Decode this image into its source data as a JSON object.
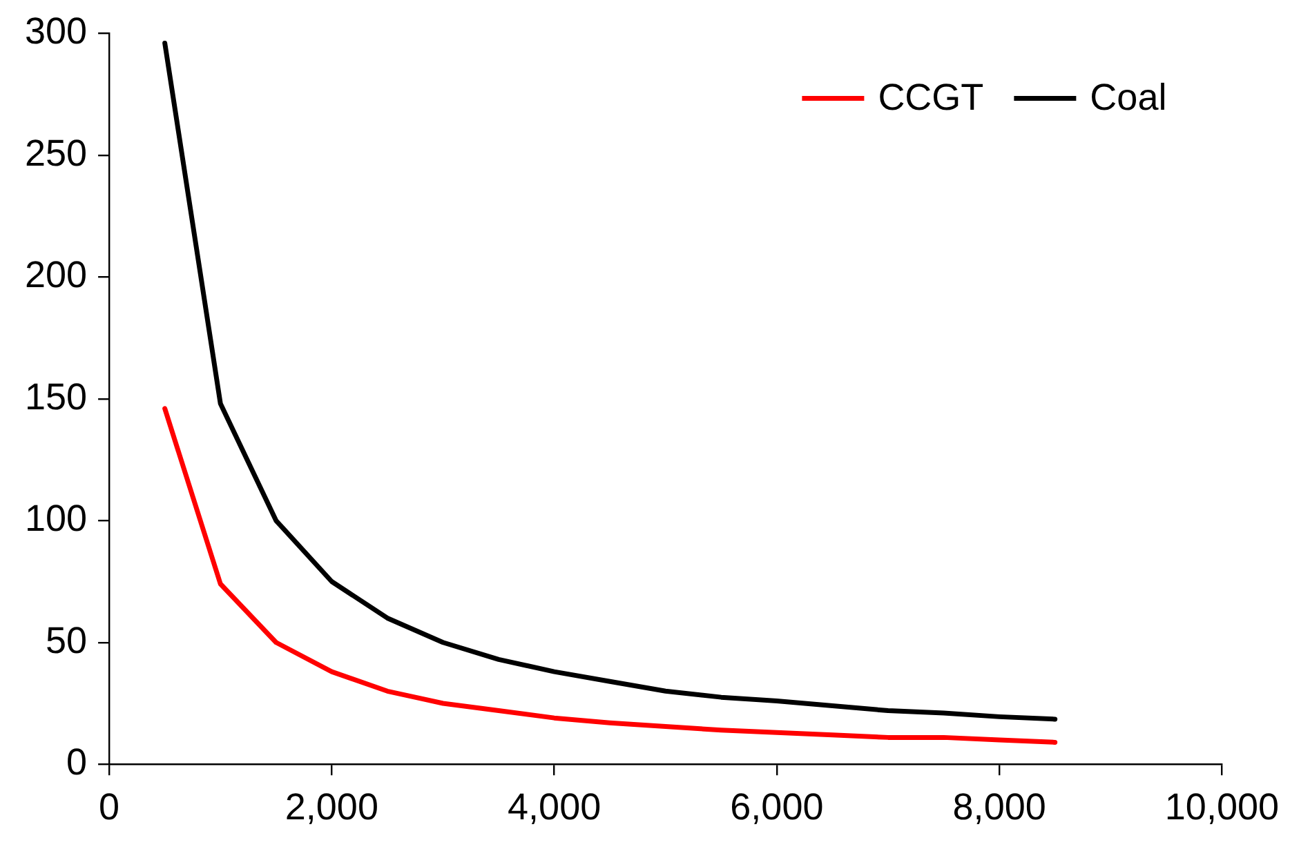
{
  "chart_data": {
    "type": "line",
    "x": [
      500,
      1000,
      1500,
      2000,
      2500,
      3000,
      3500,
      4000,
      4500,
      5000,
      5500,
      6000,
      6500,
      7000,
      7500,
      8000,
      8500
    ],
    "series": [
      {
        "name": "CCGT",
        "color": "#ff0000",
        "values": [
          146,
          74,
          50,
          38,
          30,
          25,
          22,
          19,
          17,
          15.5,
          14,
          13,
          12,
          11,
          11,
          10,
          9
        ]
      },
      {
        "name": "Coal",
        "color": "#000000",
        "values": [
          296,
          148,
          100,
          75,
          60,
          50,
          43,
          38,
          34,
          30,
          27.5,
          26,
          24,
          22,
          21,
          19.5,
          18.5
        ]
      }
    ],
    "xlim": [
      0,
      10000
    ],
    "xticks": [
      0,
      {
        "value": 2000,
        "label": "2,000"
      },
      {
        "value": 4000,
        "label": "4,000"
      },
      {
        "value": 6000,
        "label": "6,000"
      },
      {
        "value": 8000,
        "label": "8,000"
      },
      {
        "value": 10000,
        "label": "10,000"
      }
    ],
    "ylim": [
      0,
      300
    ],
    "yticks": [
      0,
      50,
      100,
      150,
      200,
      250,
      300
    ],
    "grid": false,
    "legend": "top right",
    "marker": "none",
    "line_style": "solid"
  }
}
